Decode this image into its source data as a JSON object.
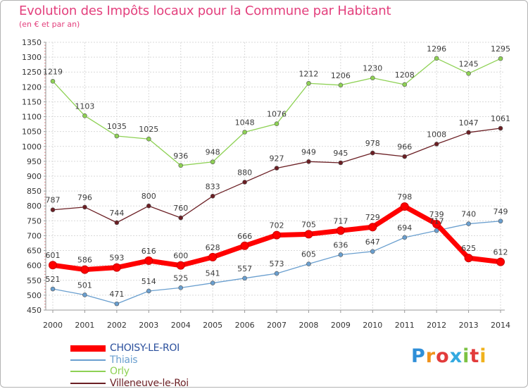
{
  "title": "Evolution des Impôts locaux pour la Commune par Habitant",
  "subtitle": "(en € et par an)",
  "logo": {
    "text": "Proxiti",
    "colors": [
      "#2f8fd8",
      "#f0931c",
      "#e23b3b",
      "#33a9e0",
      "#7cc243",
      "#e23b3b",
      "#f0b21c"
    ]
  },
  "chart_data": {
    "type": "line",
    "title": "Evolution des Impôts locaux pour la Commune par Habitant",
    "subtitle": "(en € et par an)",
    "x": [
      "2000",
      "2001",
      "2002",
      "2003",
      "2004",
      "2005",
      "2006",
      "2007",
      "2008",
      "2009",
      "2010",
      "2011",
      "2012",
      "2013",
      "2014"
    ],
    "ylim": [
      450,
      1350
    ],
    "yticks": [
      450,
      500,
      550,
      600,
      650,
      700,
      750,
      800,
      850,
      900,
      950,
      1000,
      1050,
      1100,
      1150,
      1200,
      1250,
      1300,
      1350
    ],
    "grid": true,
    "legend_position": "bottom",
    "series": [
      {
        "name": "CHOISY-LE-ROI",
        "color": "#ff0000",
        "values": [
          601,
          586,
          593,
          616,
          600,
          628,
          666,
          702,
          705,
          717,
          729,
          798,
          739,
          625,
          612
        ]
      },
      {
        "name": "Thiais",
        "color": "#6a9fcf",
        "values": [
          521,
          501,
          471,
          514,
          525,
          541,
          557,
          573,
          605,
          636,
          647,
          694,
          717,
          740,
          749
        ]
      },
      {
        "name": "Orly",
        "color": "#8ed154",
        "values": [
          1219,
          1103,
          1035,
          1025,
          936,
          948,
          1048,
          1076,
          1212,
          1206,
          1230,
          1208,
          1296,
          1245,
          1295
        ]
      },
      {
        "name": "Villeneuve-le-Roi",
        "color": "#6b1f24",
        "values": [
          787,
          796,
          744,
          800,
          760,
          833,
          880,
          927,
          949,
          945,
          978,
          966,
          1008,
          1047,
          1061
        ]
      }
    ]
  }
}
